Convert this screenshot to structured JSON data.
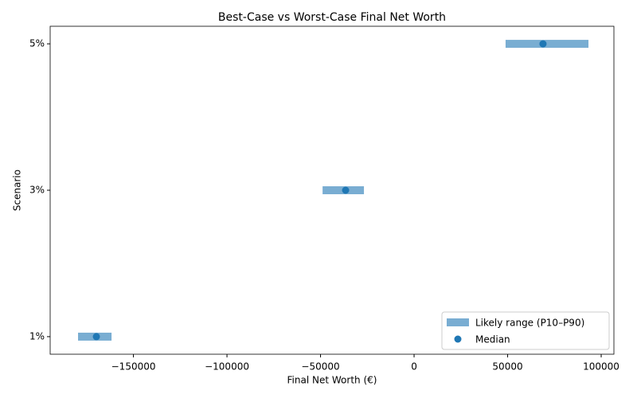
{
  "chart_data": {
    "type": "range",
    "title": "Best-Case vs Worst-Case Final Net Worth",
    "x_label": "Final Net Worth (€)",
    "y_label": "Scenario",
    "y": [
      1,
      3,
      5
    ],
    "series": [
      {
        "name": "Likely range (P10–P90)",
        "color": "#1f77b4",
        "opacity": 0.6,
        "low": [
          -179600,
          -48900,
          48900
        ],
        "high": [
          -161700,
          -26800,
          93200
        ]
      },
      {
        "name": "Median",
        "color": "#1f77b4",
        "values": [
          -169800,
          -36600,
          68900
        ]
      }
    ],
    "xlim": [
      -194500,
      106800
    ],
    "xticks": [
      {
        "value": -150000,
        "label": "−150000"
      },
      {
        "value": -100000,
        "label": "−100000"
      },
      {
        "value": -50000,
        "label": "−50000"
      },
      0,
      50000,
      100000
    ],
    "ylim": [
      0.76,
      5.24
    ],
    "yticks": [
      {
        "value": 1,
        "label": "1%"
      },
      {
        "value": 3,
        "label": "3%"
      },
      {
        "value": 5,
        "label": "5%"
      }
    ],
    "legend": "lower right"
  }
}
